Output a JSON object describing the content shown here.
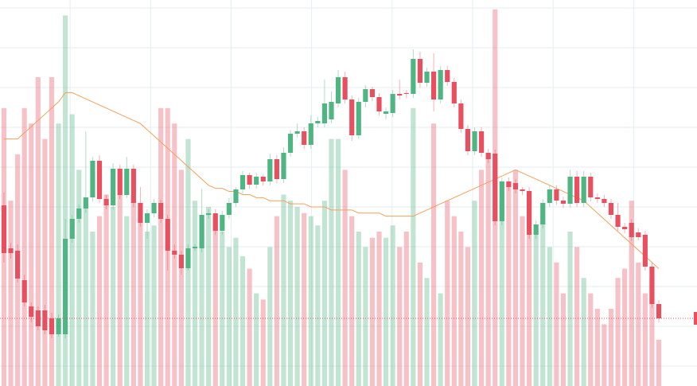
{
  "chart_data": {
    "type": "candlestick",
    "open": [
      227,
      173,
      170,
      133,
      100,
      95,
      95,
      85,
      65,
      65,
      185,
      210,
      223,
      237,
      283,
      235,
      227,
      273,
      240,
      273,
      230,
      205,
      217,
      230,
      210,
      170,
      165,
      148,
      173,
      173,
      215,
      217,
      195,
      215,
      230,
      247,
      265,
      253,
      263,
      257,
      285,
      260,
      293,
      317,
      320,
      303,
      330,
      330,
      335,
      355,
      388,
      360,
      315,
      357,
      373,
      363,
      342,
      343,
      367,
      368,
      367,
      411,
      381,
      395,
      360,
      397,
      382,
      355,
      323,
      295,
      320,
      293,
      292,
      207,
      257,
      255,
      247,
      245,
      190,
      203,
      230,
      247,
      233,
      229,
      263,
      230,
      263,
      237,
      235,
      230,
      215,
      200,
      205,
      193,
      190,
      150,
      103
    ],
    "high": [
      243,
      180,
      178,
      140,
      105,
      100,
      102,
      92,
      90,
      210,
      215,
      228,
      320,
      288,
      290,
      240,
      280,
      278,
      288,
      278,
      250,
      222,
      235,
      234,
      215,
      178,
      170,
      178,
      178,
      248,
      222,
      222,
      220,
      236,
      250,
      270,
      268,
      268,
      266,
      292,
      290,
      300,
      322,
      330,
      325,
      340,
      338,
      385,
      370,
      397,
      395,
      365,
      362,
      378,
      376,
      368,
      350,
      372,
      385,
      372,
      423,
      420,
      400,
      418,
      402,
      402,
      387,
      360,
      328,
      325,
      325,
      298,
      297,
      262,
      262,
      260,
      250,
      250,
      208,
      235,
      252,
      252,
      238,
      272,
      270,
      270,
      268,
      242,
      240,
      235,
      230,
      205,
      210,
      198,
      195,
      155,
      108
    ],
    "low": [
      155,
      160,
      130,
      100,
      80,
      70,
      65,
      60,
      62,
      60,
      180,
      205,
      218,
      232,
      230,
      222,
      222,
      235,
      236,
      225,
      200,
      185,
      212,
      205,
      145,
      160,
      140,
      145,
      170,
      168,
      210,
      190,
      190,
      210,
      225,
      242,
      248,
      248,
      252,
      252,
      255,
      255,
      288,
      312,
      298,
      298,
      325,
      325,
      330,
      350,
      355,
      308,
      310,
      350,
      358,
      340,
      335,
      338,
      360,
      362,
      362,
      375,
      376,
      345,
      355,
      377,
      350,
      318,
      290,
      290,
      288,
      280,
      202,
      202,
      245,
      242,
      240,
      185,
      185,
      198,
      225,
      228,
      224,
      224,
      225,
      225,
      232,
      230,
      225,
      210,
      195,
      192,
      182,
      183,
      145,
      98,
      80
    ],
    "close": [
      167,
      167,
      135,
      105,
      87,
      75,
      70,
      65,
      85,
      185,
      210,
      223,
      237,
      283,
      235,
      227,
      273,
      240,
      273,
      230,
      205,
      217,
      230,
      210,
      170,
      165,
      148,
      173,
      175,
      215,
      217,
      195,
      215,
      230,
      247,
      265,
      253,
      263,
      257,
      285,
      260,
      293,
      317,
      320,
      303,
      330,
      333,
      355,
      357,
      388,
      360,
      315,
      357,
      373,
      363,
      345,
      345,
      367,
      365,
      367,
      411,
      381,
      395,
      360,
      397,
      382,
      355,
      323,
      295,
      320,
      293,
      285,
      207,
      257,
      250,
      247,
      245,
      190,
      203,
      230,
      247,
      233,
      229,
      263,
      230,
      263,
      237,
      235,
      230,
      215,
      200,
      197,
      187,
      187,
      150,
      103,
      85
    ],
    "up_color": "#4fb582",
    "down_color": "#e8505f",
    "xlim": [
      -0.58,
      101.6
    ],
    "xticks": [
      9.7,
      21.5,
      33.3,
      45.1,
      56.9,
      68.7,
      80.5,
      92.3
    ],
    "ylim": [
      0,
      485
    ],
    "yticks": [
      25,
      75,
      125,
      175,
      225,
      275,
      325,
      375,
      425,
      475
    ],
    "grid": true,
    "grid_color": "#e6edf0",
    "volume": {
      "values": [
        90,
        60,
        75,
        90,
        85,
        100,
        80,
        100,
        85,
        120,
        88,
        70,
        60,
        50,
        55,
        62,
        58,
        70,
        55,
        60,
        55,
        50,
        52,
        90,
        90,
        85,
        70,
        80,
        60,
        52,
        58,
        55,
        50,
        45,
        48,
        42,
        38,
        30,
        28,
        45,
        55,
        62,
        60,
        58,
        56,
        55,
        52,
        60,
        80,
        80,
        70,
        55,
        50,
        45,
        48,
        50,
        48,
        52,
        45,
        50,
        90,
        40,
        35,
        85,
        30,
        60,
        55,
        50,
        45,
        60,
        70,
        75,
        122,
        60,
        65,
        70,
        55,
        60,
        50,
        55,
        45,
        40,
        30,
        50,
        45,
        35,
        30,
        25,
        20,
        25,
        35,
        38,
        60,
        40,
        30,
        35,
        15
      ],
      "ylim": [
        0,
        125
      ],
      "opacity": 0.35
    },
    "volume_ma": {
      "values": [
        80,
        80,
        80,
        82,
        84,
        86,
        88,
        90,
        92,
        95,
        95,
        94,
        93,
        92,
        91,
        90,
        89,
        88,
        87,
        86,
        85,
        83,
        81,
        79,
        77,
        75,
        73,
        71,
        69,
        67,
        65,
        64,
        64,
        63,
        63,
        62,
        62,
        61,
        61,
        60,
        60,
        60,
        59,
        59,
        59,
        58,
        58,
        58,
        57,
        57,
        57,
        57,
        56,
        56,
        56,
        56,
        55,
        55,
        55,
        55,
        55,
        56,
        57,
        58,
        59,
        60,
        61,
        62,
        63,
        64,
        65,
        66,
        67,
        68,
        69,
        70,
        69,
        68,
        67,
        66,
        65,
        64,
        63,
        62,
        61,
        60,
        58,
        56,
        54,
        52,
        50,
        48,
        46,
        44,
        42,
        40,
        38
      ],
      "color": "#f5a05a"
    },
    "last_price_line": true,
    "last_price_color": "#e8505f"
  }
}
